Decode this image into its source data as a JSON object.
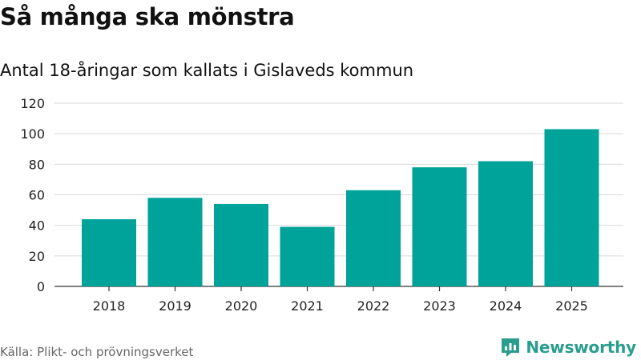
{
  "title": "Så många ska mönstra",
  "subtitle": "Antal 18-åringar som kallats i Gislaveds kommun",
  "source": "Källa: Plikt- och prövningsverket",
  "brand": "Newsworthy",
  "colors": {
    "bar": "#00a39a",
    "grid": "#d9d9d9",
    "axis": "#333333",
    "brand": "#2a9d8f"
  },
  "chart_data": {
    "type": "bar",
    "categories": [
      "2018",
      "2019",
      "2020",
      "2021",
      "2022",
      "2023",
      "2024",
      "2025"
    ],
    "values": [
      44,
      58,
      54,
      39,
      63,
      78,
      82,
      103
    ],
    "ylim": [
      0,
      120
    ],
    "yticks": [
      0,
      20,
      40,
      60,
      80,
      100,
      120
    ],
    "grid": true,
    "xlabel": "",
    "ylabel": ""
  }
}
